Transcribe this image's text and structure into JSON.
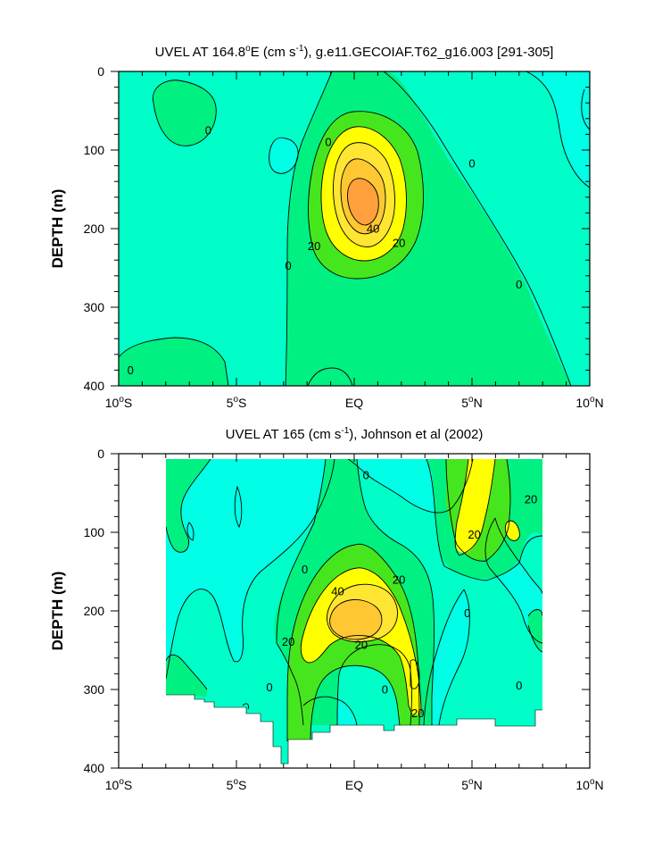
{
  "colors": {
    "contour_fill": [
      "#00ffe6",
      "#00ffc8",
      "#00f082",
      "#46e61e",
      "#ffff00",
      "#ffe632",
      "#ffc832",
      "#ffa03c"
    ],
    "line": "#000000",
    "missing": "#ffffff"
  },
  "x_tick_labels": [
    {
      "base": "10",
      "deg": "o",
      "hem": "S"
    },
    {
      "base": "5",
      "deg": "o",
      "hem": "S"
    },
    {
      "base": "EQ",
      "deg": "",
      "hem": ""
    },
    {
      "base": "5",
      "deg": "o",
      "hem": "N"
    },
    {
      "base": "10",
      "deg": "o",
      "hem": "N"
    }
  ],
  "chart_data": [
    {
      "type": "heatmap",
      "subtype": "filled-contour",
      "title": {
        "prefix": "UVEL AT 164.8",
        "deg": "o",
        "mid": "E (cm s",
        "sup": "-1",
        "suffix": "), g.e11.GECOIAF.T62_g16.003 [291-305]"
      },
      "xlabel": "",
      "ylabel": "DEPTH (m)",
      "x_range": [
        -10,
        10
      ],
      "y_range": [
        0,
        400
      ],
      "y_inverted": true,
      "x_ticks": [
        -10,
        -5,
        0,
        5,
        10
      ],
      "y_ticks": [
        0,
        100,
        200,
        300,
        400
      ],
      "y_tick_labels": [
        "0",
        "100",
        "200",
        "300",
        "400"
      ],
      "contour_levels": [
        -10,
        0,
        10,
        20,
        30,
        40,
        50
      ],
      "contour_labels": [
        {
          "x": -6.2,
          "y": 75,
          "text": "0"
        },
        {
          "x": -1.1,
          "y": 90,
          "text": "0"
        },
        {
          "x": -2.8,
          "y": 247,
          "text": "0"
        },
        {
          "x": 5.0,
          "y": 117,
          "text": "0"
        },
        {
          "x": 7.0,
          "y": 271,
          "text": "0"
        },
        {
          "x": -9.5,
          "y": 380,
          "text": "0"
        },
        {
          "x": -1.7,
          "y": 222,
          "text": "20"
        },
        {
          "x": 1.9,
          "y": 218,
          "text": "20"
        },
        {
          "x": 0.8,
          "y": 200,
          "text": "40"
        }
      ],
      "peak": {
        "x": 0.0,
        "y": 170,
        "value": "> 50"
      }
    },
    {
      "type": "heatmap",
      "subtype": "filled-contour",
      "title": {
        "prefix": "UVEL AT 165 (cm s",
        "deg": "",
        "mid": "",
        "sup": "-1",
        "suffix": "), Johnson et al (2002)"
      },
      "xlabel": "",
      "ylabel": "DEPTH (m)",
      "x_range": [
        -10,
        10
      ],
      "y_range": [
        0,
        400
      ],
      "y_inverted": true,
      "x_ticks": [
        -10,
        -5,
        0,
        5,
        10
      ],
      "y_ticks": [
        0,
        100,
        200,
        300,
        400
      ],
      "y_tick_labels": [
        "0",
        "100",
        "200",
        "300",
        "400"
      ],
      "data_extent_x": [
        -8,
        8
      ],
      "contour_levels": [
        -10,
        0,
        10,
        20,
        30,
        40
      ],
      "contour_labels": [
        {
          "x": 0.5,
          "y": 27,
          "text": "0"
        },
        {
          "x": -2.1,
          "y": 147,
          "text": "0"
        },
        {
          "x": 4.8,
          "y": 203,
          "text": "0"
        },
        {
          "x": -3.6,
          "y": 297,
          "text": "0"
        },
        {
          "x": 1.3,
          "y": 300,
          "text": "0"
        },
        {
          "x": 7.0,
          "y": 295,
          "text": "0"
        },
        {
          "x": -0.7,
          "y": 175,
          "text": "40"
        },
        {
          "x": 1.9,
          "y": 160,
          "text": "20"
        },
        {
          "x": -2.8,
          "y": 239,
          "text": "20"
        },
        {
          "x": 0.3,
          "y": 243,
          "text": "20"
        },
        {
          "x": 2.7,
          "y": 330,
          "text": "20"
        },
        {
          "x": 5.1,
          "y": 103,
          "text": "20"
        },
        {
          "x": 7.5,
          "y": 58,
          "text": "20"
        }
      ],
      "peak": {
        "x": -0.5,
        "y": 190,
        "value": "> 40"
      }
    }
  ]
}
